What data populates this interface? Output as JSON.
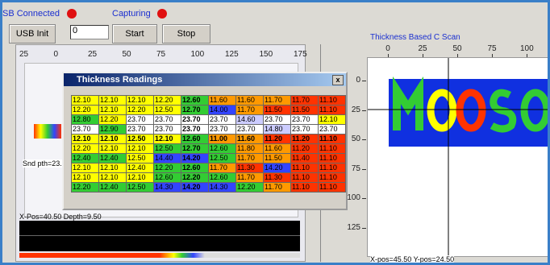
{
  "header": {
    "usb_status": "SB Connected",
    "capture_status": "Capturing",
    "usb_button": "USB Init",
    "input_value": "0",
    "start_button": "Start",
    "stop_button": "Stop"
  },
  "left_scan": {
    "x_labels": [
      "25",
      "0",
      "25",
      "50",
      "75",
      "100",
      "125",
      "150",
      "175"
    ],
    "sound_path": "Snd pth=23.",
    "position": "X-Pos=40.50 Depth=9.50"
  },
  "dialog": {
    "title": "Thickness Readings",
    "close": "x",
    "rows": [
      [
        "12.10",
        "12.10",
        "12.10",
        "12.20",
        "12.60",
        "11.60",
        "11.60",
        "11.70",
        "11.70",
        "11.10"
      ],
      [
        "12.20",
        "12.10",
        "12.20",
        "12.50",
        "12.70",
        "14.00",
        "11.70",
        "11.50",
        "11.50",
        "11.10"
      ],
      [
        "12.80",
        "12.20",
        "23.70",
        "23.70",
        "23.70",
        "23.70",
        "14.60",
        "23.70",
        "23.70",
        "12.10"
      ],
      [
        "23.70",
        "12.90",
        "23.70",
        "23.70",
        "23.70",
        "23.70",
        "23.70",
        "14.80",
        "23.70",
        "23.70"
      ],
      [
        "12.10",
        "12.10",
        "12.50",
        "12.10",
        "12.60",
        "11.00",
        "11.60",
        "11.20",
        "11.20",
        "11.10"
      ],
      [
        "12.20",
        "12.10",
        "12.10",
        "12.50",
        "12.70",
        "12.60",
        "11.80",
        "11.60",
        "11.20",
        "11.10"
      ],
      [
        "12.40",
        "12.40",
        "12.50",
        "14.40",
        "14.20",
        "12.50",
        "11.70",
        "11.50",
        "11.40",
        "11.10"
      ],
      [
        "12.10",
        "12.10",
        "12.40",
        "12.20",
        "12.60",
        "11.70",
        "11.30",
        "14.20",
        "11.10",
        "11.10"
      ],
      [
        "12.10",
        "12.10",
        "12.10",
        "12.60",
        "12.20",
        "12.60",
        "11.70",
        "11.30",
        "11.10",
        "11.10"
      ],
      [
        "12.20",
        "12.40",
        "12.50",
        "14.30",
        "14.20",
        "14.30",
        "12.20",
        "11.70",
        "11.10",
        "11.10"
      ]
    ],
    "cell_colors": [
      [
        "#ffff00",
        "#ffff00",
        "#ffff00",
        "#ffff00",
        "#33cc33",
        "#ff9900",
        "#ff9900",
        "#ff9900",
        "#ff3300",
        "#ff3300"
      ],
      [
        "#ffff00",
        "#ffff00",
        "#ffff00",
        "#ffff00",
        "#33cc33",
        "#3344ff",
        "#ff9900",
        "#ff3300",
        "#ff3300",
        "#ff3300"
      ],
      [
        "#33cc33",
        "#ffff00",
        "#ffffff",
        "#ffffff",
        "#ffffff",
        "#ffffff",
        "#ccccff",
        "#ffffff",
        "#ffffff",
        "#ffff00"
      ],
      [
        "#ffffff",
        "#33cc33",
        "#ffffff",
        "#ffffff",
        "#ffffff",
        "#ffffff",
        "#ffffff",
        "#ccccff",
        "#ffffff",
        "#ffffff"
      ],
      [
        "#ffff00",
        "#ffff00",
        "#ffff00",
        "#ffff00",
        "#33cc33",
        "#ff9900",
        "#ff9900",
        "#ff3300",
        "#ff3300",
        "#ff3300"
      ],
      [
        "#ffff00",
        "#ffff00",
        "#ffff00",
        "#33cc33",
        "#33cc33",
        "#33cc33",
        "#ff9900",
        "#ff9900",
        "#ff3300",
        "#ff3300"
      ],
      [
        "#33cc33",
        "#33cc33",
        "#ffff00",
        "#3344ff",
        "#3344ff",
        "#33cc33",
        "#ff9900",
        "#ff9900",
        "#ff3300",
        "#ff3300"
      ],
      [
        "#ffff00",
        "#ffff00",
        "#ffff00",
        "#33cc33",
        "#33cc33",
        "#ff9900",
        "#ff3300",
        "#3344ff",
        "#ff3300",
        "#ff3300"
      ],
      [
        "#ffff00",
        "#ffff00",
        "#ffff00",
        "#33cc33",
        "#33cc33",
        "#33cc33",
        "#ff9900",
        "#ff3300",
        "#ff3300",
        "#ff3300"
      ],
      [
        "#33cc33",
        "#33cc33",
        "#33cc33",
        "#3344ff",
        "#3344ff",
        "#3344ff",
        "#33cc33",
        "#ff9900",
        "#ff3300",
        "#ff3300"
      ]
    ]
  },
  "c_scan": {
    "title": "Thickness Based C Scan",
    "xticks": [
      0,
      25,
      50,
      75,
      100
    ],
    "yticks": [
      0,
      25,
      50,
      75,
      100,
      125
    ],
    "position": "X-pos=45.50  Y-pos=24.50"
  }
}
